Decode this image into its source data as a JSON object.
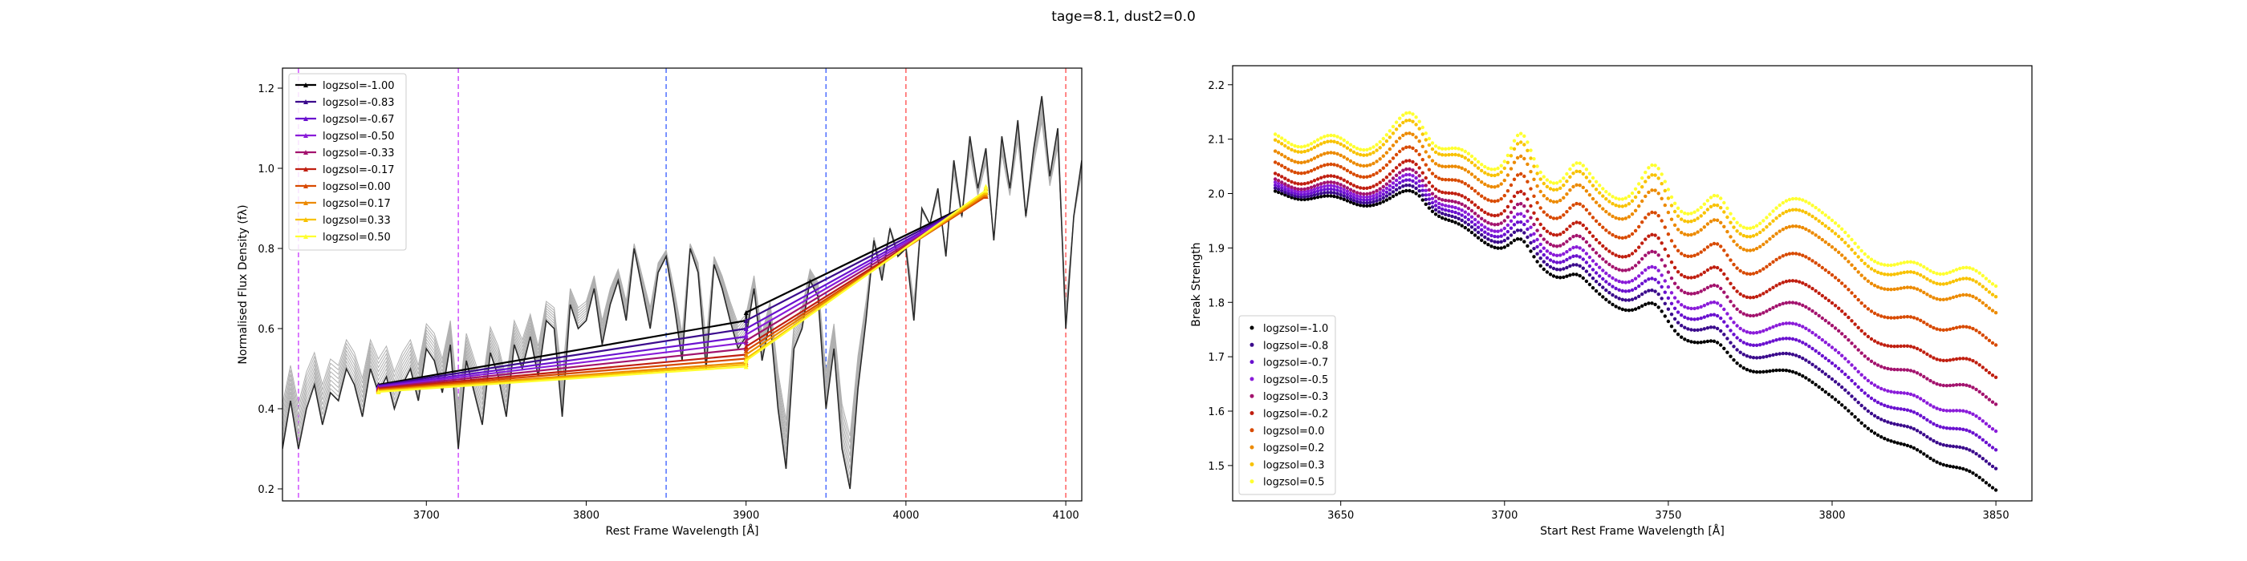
{
  "figure": {
    "suptitle": "tage=8.1, dust2=0.0"
  },
  "chart_data": [
    {
      "type": "line",
      "xlabel": "Rest Frame Wavelength [$\\AA$]",
      "xlabel_display": "Rest Frame Wavelength [Å]",
      "ylabel": "Normalised Flux Density (f_λ)",
      "ylabel_display": "Normalised Flux Density (fλ)",
      "xlim": [
        3610,
        4110
      ],
      "ylim": [
        0.17,
        1.25
      ],
      "xticks": [
        3700,
        3800,
        3900,
        4000,
        4100
      ],
      "yticks": [
        0.2,
        0.4,
        0.6,
        0.8,
        1.0,
        1.2
      ],
      "grid": false,
      "legend_placement": "upper-left",
      "vlines": [
        {
          "x": 3620,
          "color": "#cc44ff"
        },
        {
          "x": 3720,
          "color": "#cc44ff"
        },
        {
          "x": 3850,
          "color": "#4466ff"
        },
        {
          "x": 3950,
          "color": "#4466ff"
        },
        {
          "x": 4000,
          "color": "#ff5555"
        },
        {
          "x": 4100,
          "color": "#ff5555"
        }
      ],
      "spectrum_anchor_points": {
        "x": [
          3610,
          3615,
          3620,
          3625,
          3630,
          3635,
          3640,
          3645,
          3650,
          3655,
          3660,
          3665,
          3670,
          3675,
          3680,
          3685,
          3690,
          3695,
          3700,
          3705,
          3710,
          3715,
          3720,
          3725,
          3730,
          3735,
          3740,
          3745,
          3750,
          3755,
          3760,
          3765,
          3770,
          3775,
          3780,
          3785,
          3790,
          3795,
          3800,
          3805,
          3810,
          3815,
          3820,
          3825,
          3830,
          3835,
          3840,
          3845,
          3850,
          3855,
          3860,
          3865,
          3870,
          3875,
          3880,
          3885,
          3890,
          3895,
          3900,
          3905,
          3910,
          3915,
          3920,
          3925,
          3930,
          3935,
          3940,
          3945,
          3950,
          3955,
          3960,
          3965,
          3970,
          3975,
          3980,
          3985,
          3990,
          3995,
          4000,
          4005,
          4010,
          4015,
          4020,
          4025,
          4030,
          4035,
          4040,
          4045,
          4050,
          4055,
          4060,
          4065,
          4070,
          4075,
          4080,
          4085,
          4090,
          4095,
          4100,
          4105,
          4110
        ],
        "y": [
          0.3,
          0.42,
          0.3,
          0.4,
          0.46,
          0.36,
          0.44,
          0.42,
          0.5,
          0.46,
          0.38,
          0.5,
          0.44,
          0.48,
          0.4,
          0.46,
          0.5,
          0.42,
          0.55,
          0.52,
          0.44,
          0.56,
          0.3,
          0.52,
          0.44,
          0.36,
          0.54,
          0.48,
          0.38,
          0.56,
          0.5,
          0.58,
          0.48,
          0.62,
          0.6,
          0.38,
          0.66,
          0.6,
          0.62,
          0.7,
          0.56,
          0.66,
          0.72,
          0.62,
          0.8,
          0.7,
          0.6,
          0.74,
          0.78,
          0.66,
          0.52,
          0.8,
          0.74,
          0.5,
          0.76,
          0.7,
          0.62,
          0.55,
          0.58,
          0.7,
          0.52,
          0.62,
          0.4,
          0.25,
          0.55,
          0.6,
          0.72,
          0.68,
          0.4,
          0.55,
          0.3,
          0.2,
          0.45,
          0.62,
          0.82,
          0.72,
          0.85,
          0.78,
          0.8,
          0.62,
          0.9,
          0.86,
          0.95,
          0.78,
          1.02,
          0.88,
          1.08,
          0.95,
          1.05,
          0.82,
          1.08,
          0.95,
          1.12,
          0.88,
          1.05,
          1.18,
          0.98,
          1.1,
          0.6,
          0.88,
          1.02
        ]
      },
      "series": [
        {
          "name": "logzsol=-1.00",
          "color": "#000000",
          "x": [
            3670,
            3900,
            3900,
            4050,
            4050
          ],
          "y": [
            0.46,
            0.62,
            0.64,
            0.93,
            0.94
          ]
        },
        {
          "name": "logzsol=-0.83",
          "color": "#3b0b8c",
          "x": [
            3670,
            3900,
            3900,
            4050,
            4050
          ],
          "y": [
            0.458,
            0.6,
            0.62,
            0.93,
            0.94
          ]
        },
        {
          "name": "logzsol=-0.67",
          "color": "#6a11cf",
          "x": [
            3670,
            3900,
            3900,
            4050,
            4050
          ],
          "y": [
            0.456,
            0.58,
            0.6,
            0.93,
            0.94
          ]
        },
        {
          "name": "logzsol=-0.50",
          "color": "#8a1cd9",
          "x": [
            3670,
            3900,
            3900,
            4050,
            4050
          ],
          "y": [
            0.454,
            0.565,
            0.585,
            0.93,
            0.94
          ]
        },
        {
          "name": "logzsol=-0.33",
          "color": "#a3136e",
          "x": [
            3670,
            3900,
            3900,
            4050,
            4050
          ],
          "y": [
            0.452,
            0.55,
            0.57,
            0.93,
            0.94
          ]
        },
        {
          "name": "logzsol=-0.17",
          "color": "#c01f10",
          "x": [
            3670,
            3900,
            3900,
            4050,
            4050
          ],
          "y": [
            0.45,
            0.535,
            0.555,
            0.93,
            0.94
          ]
        },
        {
          "name": "logzsol=0.00",
          "color": "#d84a00",
          "x": [
            3670,
            3900,
            3900,
            4050,
            4050
          ],
          "y": [
            0.448,
            0.525,
            0.545,
            0.93,
            0.94
          ]
        },
        {
          "name": "logzsol=0.17",
          "color": "#ec8a00",
          "x": [
            3670,
            3900,
            3900,
            4050,
            4050
          ],
          "y": [
            0.446,
            0.515,
            0.535,
            0.935,
            0.945
          ]
        },
        {
          "name": "logzsol=0.33",
          "color": "#f8c200",
          "x": [
            3670,
            3900,
            3900,
            4050,
            4050
          ],
          "y": [
            0.444,
            0.51,
            0.525,
            0.94,
            0.95
          ]
        },
        {
          "name": "logzsol=0.50",
          "color": "#ffff30",
          "x": [
            3670,
            3900,
            3900,
            4050,
            4050
          ],
          "y": [
            0.442,
            0.505,
            0.52,
            0.945,
            0.955
          ]
        }
      ]
    },
    {
      "type": "scatter",
      "xlabel": "Start Rest Frame Wavelength [$\\AA$]",
      "xlabel_display": "Start Rest Frame Wavelength [Å]",
      "ylabel": "Break Strength",
      "xlim": [
        3617,
        3861
      ],
      "ylim": [
        1.435,
        2.235
      ],
      "xticks": [
        3650,
        3700,
        3750,
        3800,
        3850
      ],
      "yticks": [
        1.5,
        1.6,
        1.7,
        1.8,
        1.9,
        2.0,
        2.1,
        2.2
      ],
      "grid": false,
      "legend_placement": "lower-left",
      "x_range": [
        3630,
        3850
      ],
      "x_step": 1,
      "series": [
        {
          "name": "logzsol=-1.0",
          "color": "#000000",
          "start": 2.0,
          "end": 1.46
        },
        {
          "name": "logzsol=-0.8",
          "color": "#3b0b8c",
          "start": 2.005,
          "end": 1.5
        },
        {
          "name": "logzsol=-0.7",
          "color": "#6a11cf",
          "start": 2.01,
          "end": 1.535
        },
        {
          "name": "logzsol=-0.5",
          "color": "#8a1cd9",
          "start": 2.015,
          "end": 1.57
        },
        {
          "name": "logzsol=-0.3",
          "color": "#a3136e",
          "start": 2.02,
          "end": 1.62
        },
        {
          "name": "logzsol=-0.2",
          "color": "#c01f10",
          "start": 2.03,
          "end": 1.67
        },
        {
          "name": "logzsol=0.0",
          "color": "#d84a00",
          "start": 2.05,
          "end": 1.73
        },
        {
          "name": "logzsol=0.2",
          "color": "#ec8a00",
          "start": 2.07,
          "end": 1.79
        },
        {
          "name": "logzsol=0.3",
          "color": "#f8c200",
          "start": 2.09,
          "end": 1.82
        },
        {
          "name": "logzsol=0.5",
          "color": "#ffff30",
          "start": 2.1,
          "end": 1.84
        }
      ]
    }
  ]
}
